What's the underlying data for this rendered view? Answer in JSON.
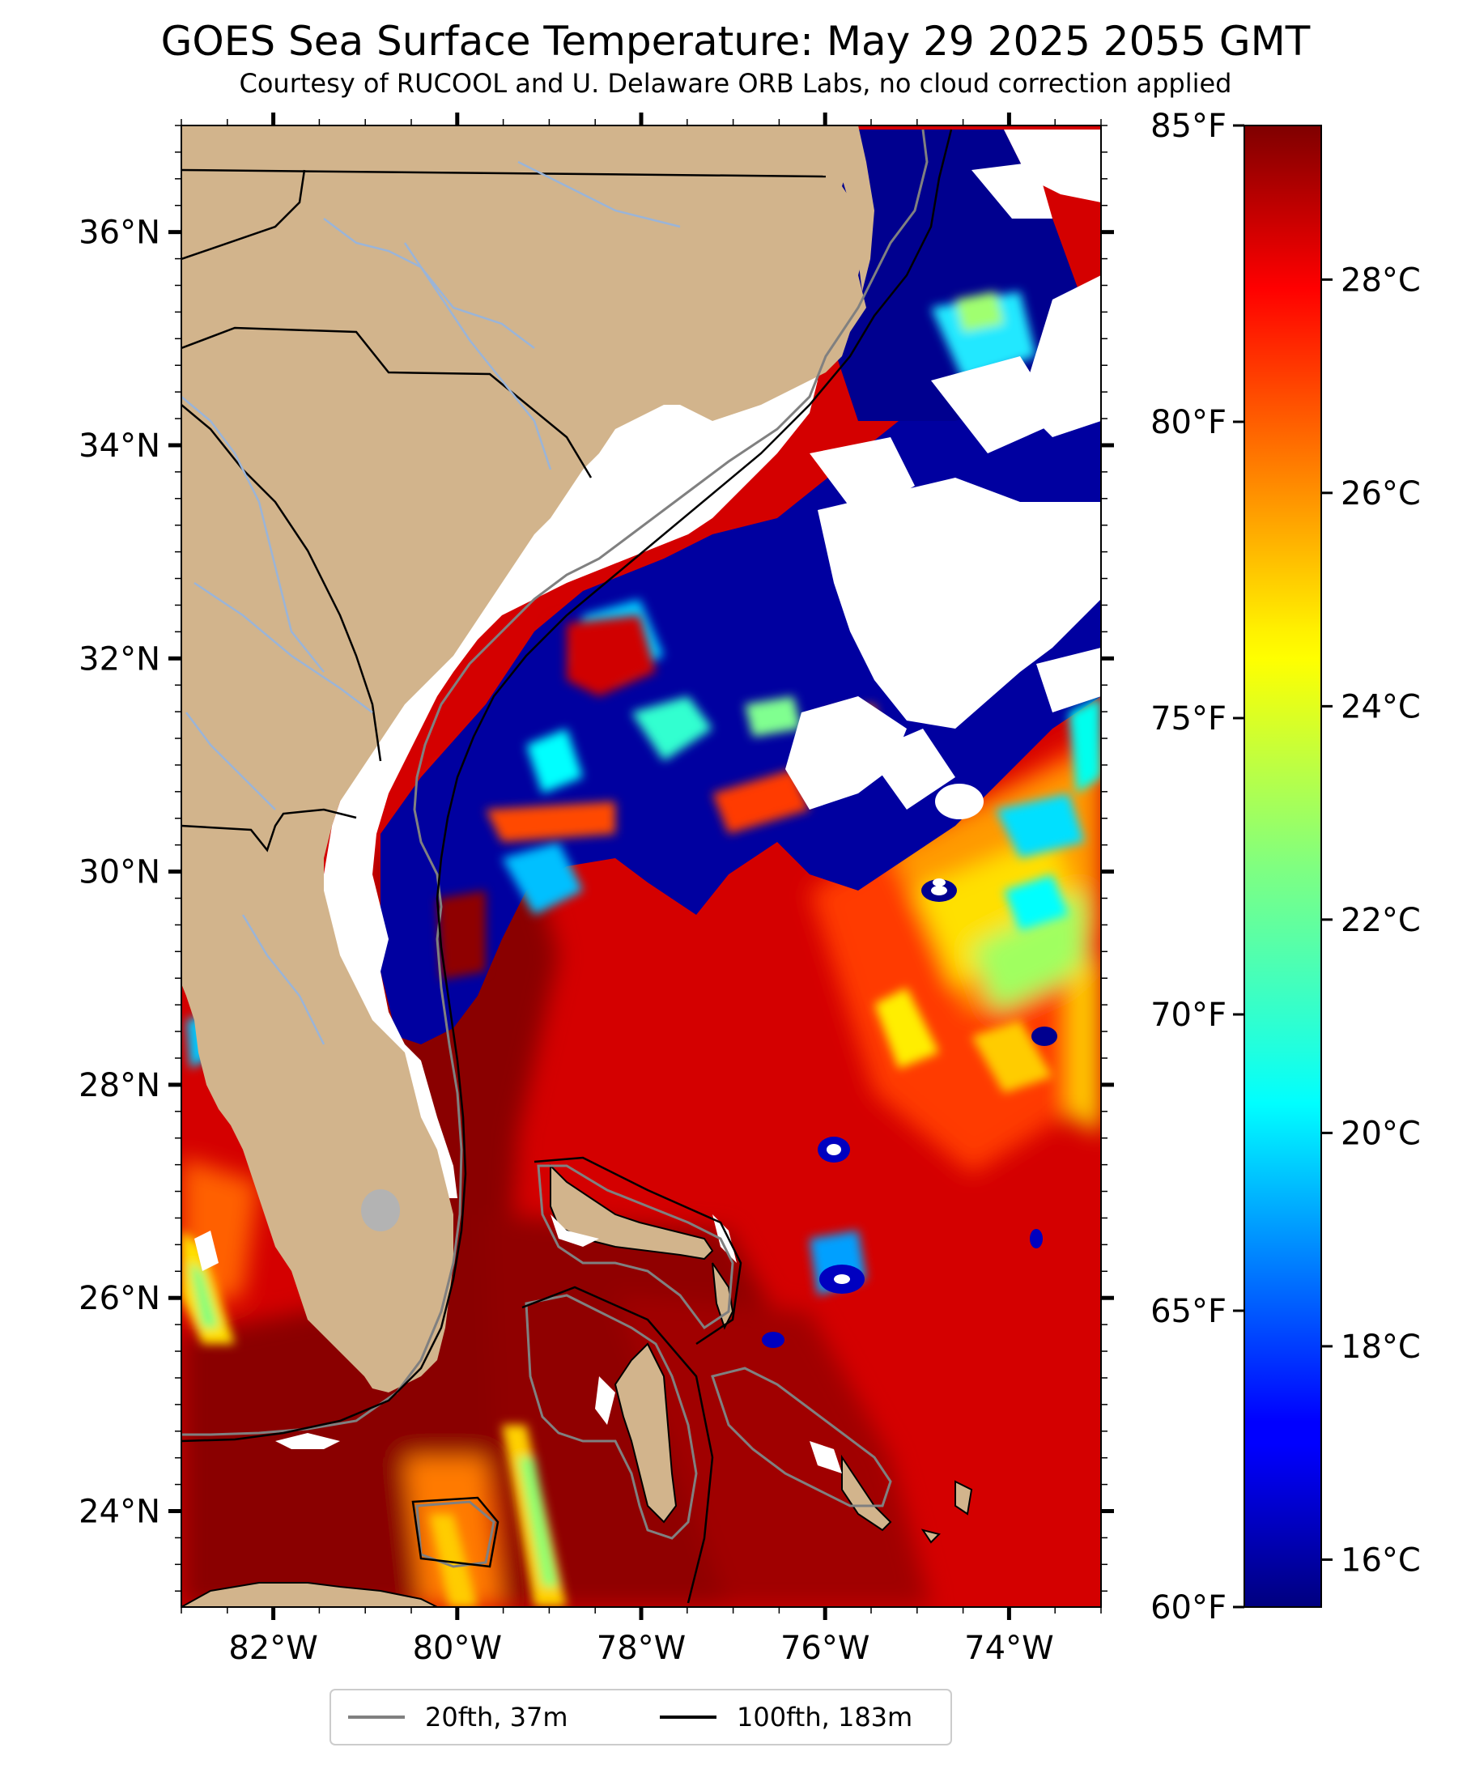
{
  "title": "GOES Sea Surface Temperature: May 29 2025 2055 GMT",
  "subtitle": "Courtesy of RUCOOL and U. Delaware ORB Labs, no cloud correction applied",
  "map": {
    "lon_range": [
      -83,
      -73
    ],
    "lat_range": [
      23.1,
      37
    ],
    "lat_ticks": [
      {
        "value": 36,
        "label": "36°N"
      },
      {
        "value": 34,
        "label": "34°N"
      },
      {
        "value": 32,
        "label": "32°N"
      },
      {
        "value": 30,
        "label": "30°N"
      },
      {
        "value": 28,
        "label": "28°N"
      },
      {
        "value": 26,
        "label": "26°N"
      },
      {
        "value": 24,
        "label": "24°N"
      }
    ],
    "lon_ticks": [
      {
        "value": -82,
        "label": "82°W"
      },
      {
        "value": -80,
        "label": "80°W"
      },
      {
        "value": -78,
        "label": "78°W"
      },
      {
        "value": -76,
        "label": "76°W"
      },
      {
        "value": -74,
        "label": "74°W"
      }
    ],
    "colors": {
      "land": "#d2b48c",
      "cloud": "#ffffff",
      "border": "#000000",
      "river": "#9ab4d8",
      "lake": "#b3b3b3",
      "isobath_20": "#808080",
      "isobath_100": "#000000"
    }
  },
  "colorbar": {
    "colormap": "jet",
    "range_f": [
      60,
      85
    ],
    "fahrenheit_ticks": [
      {
        "value": 85,
        "label": "85°F"
      },
      {
        "value": 80,
        "label": "80°F"
      },
      {
        "value": 75,
        "label": "75°F"
      },
      {
        "value": 70,
        "label": "70°F"
      },
      {
        "value": 65,
        "label": "65°F"
      },
      {
        "value": 60,
        "label": "60°F"
      }
    ],
    "celsius_ticks": [
      {
        "value": 28,
        "label": "28°C"
      },
      {
        "value": 26,
        "label": "26°C"
      },
      {
        "value": 24,
        "label": "24°C"
      },
      {
        "value": 22,
        "label": "22°C"
      },
      {
        "value": 20,
        "label": "20°C"
      },
      {
        "value": 18,
        "label": "18°C"
      },
      {
        "value": 16,
        "label": "16°C"
      }
    ]
  },
  "legend": {
    "entries": [
      {
        "label": "20fth, 37m",
        "color": "#808080"
      },
      {
        "label": "100fth, 183m",
        "color": "#000000"
      }
    ]
  }
}
